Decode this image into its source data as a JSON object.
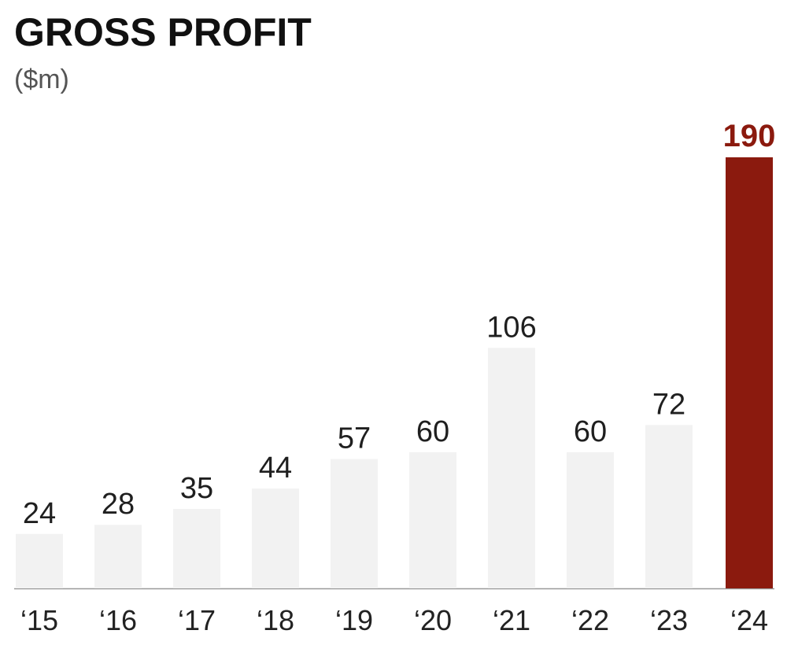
{
  "title": "GROSS PROFIT",
  "subtitle": "($m)",
  "colors": {
    "bar_default": "#f2f2f2",
    "bar_highlight": "#8b1a0e",
    "label_default": "#1f1f1f",
    "label_highlight": "#8b1a0e",
    "axis": "#999999",
    "tick_label": "#222222"
  },
  "chart_data": {
    "type": "bar",
    "title": "GROSS PROFIT",
    "subtitle": "($m)",
    "categories": [
      "‘15",
      "‘16",
      "‘17",
      "‘18",
      "‘19",
      "‘20",
      "‘21",
      "‘22",
      "‘23",
      "‘24"
    ],
    "values": [
      24,
      28,
      35,
      44,
      57,
      60,
      106,
      60,
      72,
      190
    ],
    "highlight_index": 9,
    "xlabel": "",
    "ylabel": "",
    "ylim": [
      0,
      190
    ],
    "grid": false,
    "data_labels": true
  }
}
